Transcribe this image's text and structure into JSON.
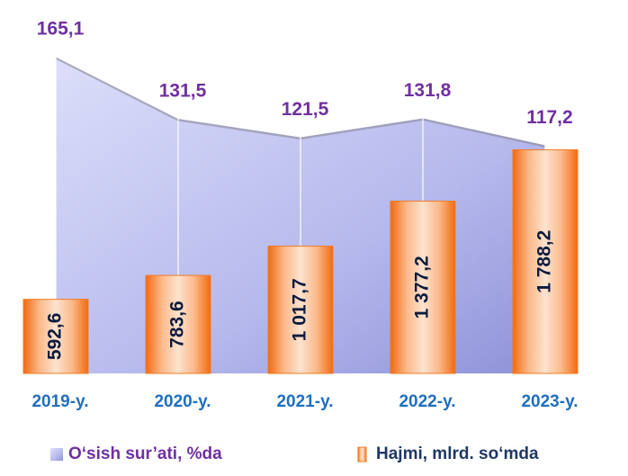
{
  "chart_data": {
    "type": "bar-area",
    "categories": [
      "2019-y.",
      "2020-y.",
      "2021-y.",
      "2022-y.",
      "2023-y."
    ],
    "series": [
      {
        "name": "O‘sish sur’ati, %da",
        "type": "area",
        "axis": "y2",
        "color": "#b9bcf0",
        "values": [
          165.1,
          131.5,
          121.5,
          131.8,
          117.2
        ],
        "value_labels": [
          "165,1",
          "131,5",
          "121,5",
          "131,8",
          "117,2"
        ]
      },
      {
        "name": "Hajmi, mlrd. so‘mda",
        "type": "bar",
        "color": "#f47a20",
        "values": [
          592.6,
          783.6,
          1017.7,
          1377.2,
          1788.2
        ],
        "value_labels": [
          "592,6",
          "783,6",
          "1 017,7",
          "1 377,2",
          "1 788,2"
        ]
      }
    ],
    "ylim": [
      0,
      2950
    ],
    "y2lim": [
      -7,
      193
    ],
    "legend": "bottom"
  }
}
